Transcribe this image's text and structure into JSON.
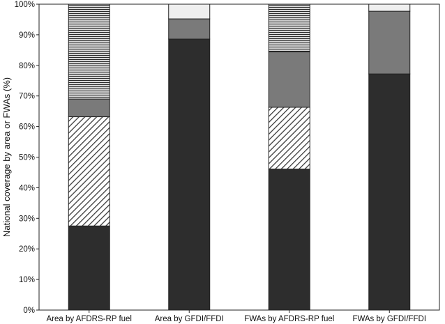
{
  "chart_data": {
    "type": "bar",
    "stacked": true,
    "title": "",
    "xlabel": "",
    "ylabel": "National coverage by area or FWAs (%)",
    "ylim": [
      0,
      100
    ],
    "yticks": [
      0,
      10,
      20,
      30,
      40,
      50,
      60,
      70,
      80,
      90,
      100
    ],
    "ytick_suffix": "%",
    "grid": false,
    "legend": "none",
    "categories": [
      "Area by AFDRS-RP fuel",
      "Area by GFDI/FFDI",
      "FWAs by AFDRS-RP fuel",
      "FWAs by GFDI/FFDI"
    ],
    "series": [
      {
        "fill": "solid",
        "color": "#2d2d2d",
        "values": [
          27.5,
          88.6,
          46.1,
          77.2
        ]
      },
      {
        "fill": "diagonal-hatch",
        "color": "#3a3a3a",
        "values": [
          35.7,
          0,
          20.2,
          0
        ]
      },
      {
        "fill": "solid",
        "color": "#7a7a7a",
        "values": [
          5.8,
          6.6,
          18.1,
          20.5
        ]
      },
      {
        "fill": "horizontal-lines",
        "color": "#2a2a2a",
        "values": [
          31.0,
          0,
          15.6,
          0
        ]
      },
      {
        "fill": "solid",
        "color": "#efefef",
        "values": [
          0,
          4.8,
          0,
          2.3
        ]
      }
    ]
  }
}
